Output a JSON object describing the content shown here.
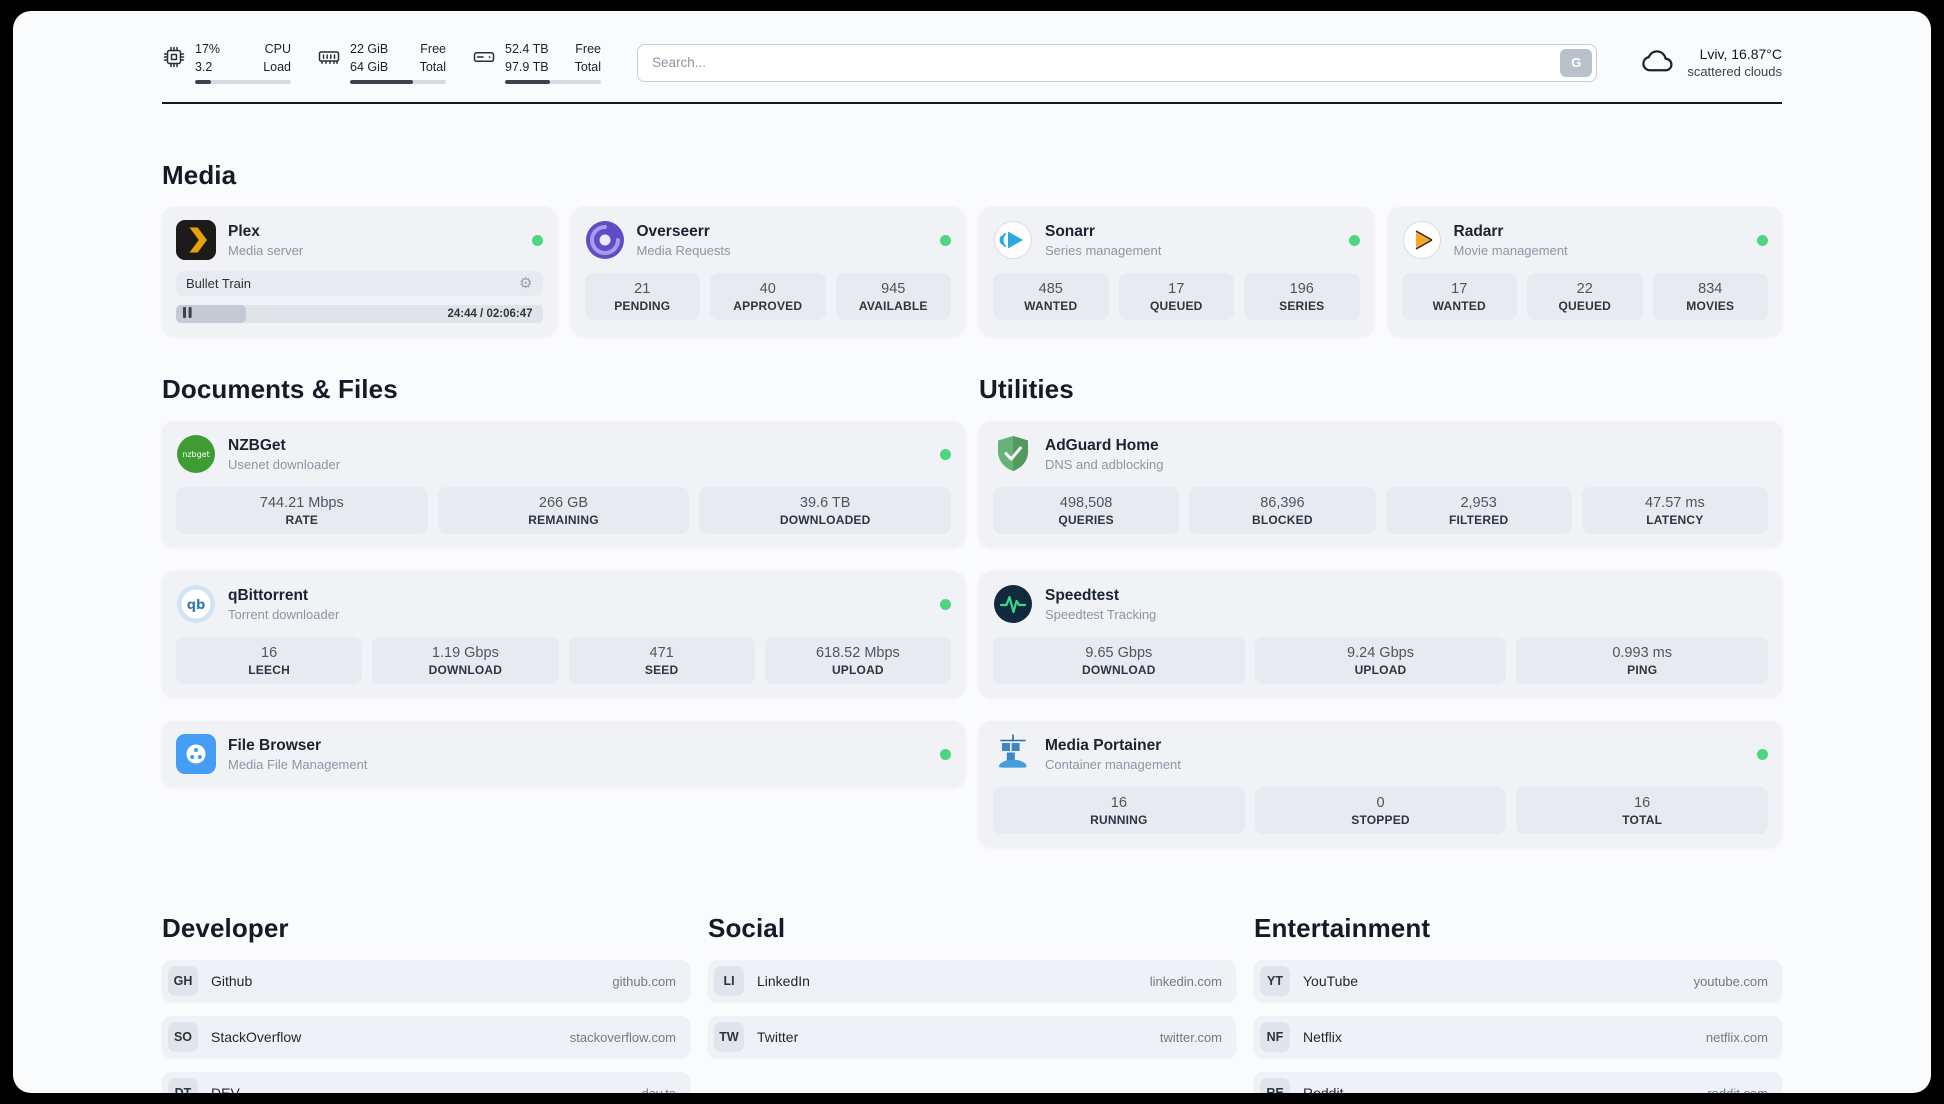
{
  "header": {
    "cpu": {
      "value_top": "17%",
      "label_top": "CPU",
      "value_bottom": "3.2",
      "label_bottom": "Load",
      "progress": 17
    },
    "ram": {
      "value_top": "22 GiB",
      "label_top": "Free",
      "value_bottom": "64 GiB",
      "label_bottom": "Total",
      "progress": 66
    },
    "disk": {
      "value_top": "52.4 TB",
      "label_top": "Free",
      "value_bottom": "97.9 TB",
      "label_bottom": "Total",
      "progress": 47
    },
    "search": {
      "placeholder": "Search...",
      "button_label": "G"
    },
    "weather": {
      "location": "Lviv, 16.87°C",
      "condition": "scattered clouds"
    }
  },
  "icons": {
    "nzbget_label": "nzbget",
    "qbittorrent_label": "qb",
    "gear_glyph": "⚙"
  },
  "media": {
    "title": "Media",
    "plex": {
      "name": "Plex",
      "desc": "Media server",
      "now_playing": "Bullet Train",
      "time": "24:44 / 02:06:47",
      "progress": 19
    },
    "overseerr": {
      "name": "Overseerr",
      "desc": "Media Requests",
      "stats": [
        {
          "value": "21",
          "label": "PENDING"
        },
        {
          "value": "40",
          "label": "APPROVED"
        },
        {
          "value": "945",
          "label": "AVAILABLE"
        }
      ]
    },
    "sonarr": {
      "name": "Sonarr",
      "desc": "Series management",
      "stats": [
        {
          "value": "485",
          "label": "WANTED"
        },
        {
          "value": "17",
          "label": "QUEUED"
        },
        {
          "value": "196",
          "label": "SERIES"
        }
      ]
    },
    "radarr": {
      "name": "Radarr",
      "desc": "Movie management",
      "stats": [
        {
          "value": "17",
          "label": "WANTED"
        },
        {
          "value": "22",
          "label": "QUEUED"
        },
        {
          "value": "834",
          "label": "MOVIES"
        }
      ]
    }
  },
  "documents": {
    "title": "Documents & Files",
    "nzbget": {
      "name": "NZBGet",
      "desc": "Usenet downloader",
      "stats": [
        {
          "value": "744.21 Mbps",
          "label": "RATE"
        },
        {
          "value": "266 GB",
          "label": "REMAINING"
        },
        {
          "value": "39.6 TB",
          "label": "DOWNLOADED"
        }
      ]
    },
    "qbittorrent": {
      "name": "qBittorrent",
      "desc": "Torrent downloader",
      "stats": [
        {
          "value": "16",
          "label": "LEECH"
        },
        {
          "value": "1.19 Gbps",
          "label": "DOWNLOAD"
        },
        {
          "value": "471",
          "label": "SEED"
        },
        {
          "value": "618.52 Mbps",
          "label": "UPLOAD"
        }
      ]
    },
    "filebrowser": {
      "name": "File Browser",
      "desc": "Media File Management"
    }
  },
  "utilities": {
    "title": "Utilities",
    "adguard": {
      "name": "AdGuard Home",
      "desc": "DNS and adblocking",
      "stats": [
        {
          "value": "498,508",
          "label": "QUERIES"
        },
        {
          "value": "86,396",
          "label": "BLOCKED"
        },
        {
          "value": "2,953",
          "label": "FILTERED"
        },
        {
          "value": "47.57 ms",
          "label": "LATENCY"
        }
      ]
    },
    "speedtest": {
      "name": "Speedtest",
      "desc": "Speedtest Tracking",
      "stats": [
        {
          "value": "9.65 Gbps",
          "label": "DOWNLOAD"
        },
        {
          "value": "9.24 Gbps",
          "label": "UPLOAD"
        },
        {
          "value": "0.993 ms",
          "label": "PING"
        }
      ]
    },
    "portainer": {
      "name": "Media Portainer",
      "desc": "Container management",
      "stats": [
        {
          "value": "16",
          "label": "RUNNING"
        },
        {
          "value": "0",
          "label": "STOPPED"
        },
        {
          "value": "16",
          "label": "TOTAL"
        }
      ]
    }
  },
  "bookmarks": {
    "developer": {
      "title": "Developer",
      "items": [
        {
          "abbr": "GH",
          "name": "Github",
          "url": "github.com"
        },
        {
          "abbr": "SO",
          "name": "StackOverflow",
          "url": "stackoverflow.com"
        },
        {
          "abbr": "DT",
          "name": "DEV",
          "url": "dev.to"
        }
      ]
    },
    "social": {
      "title": "Social",
      "items": [
        {
          "abbr": "LI",
          "name": "LinkedIn",
          "url": "linkedin.com"
        },
        {
          "abbr": "TW",
          "name": "Twitter",
          "url": "twitter.com"
        }
      ]
    },
    "entertainment": {
      "title": "Entertainment",
      "items": [
        {
          "abbr": "YT",
          "name": "YouTube",
          "url": "youtube.com"
        },
        {
          "abbr": "NF",
          "name": "Netflix",
          "url": "netflix.com"
        },
        {
          "abbr": "RE",
          "name": "Reddit",
          "url": "reddit.com"
        }
      ]
    }
  }
}
